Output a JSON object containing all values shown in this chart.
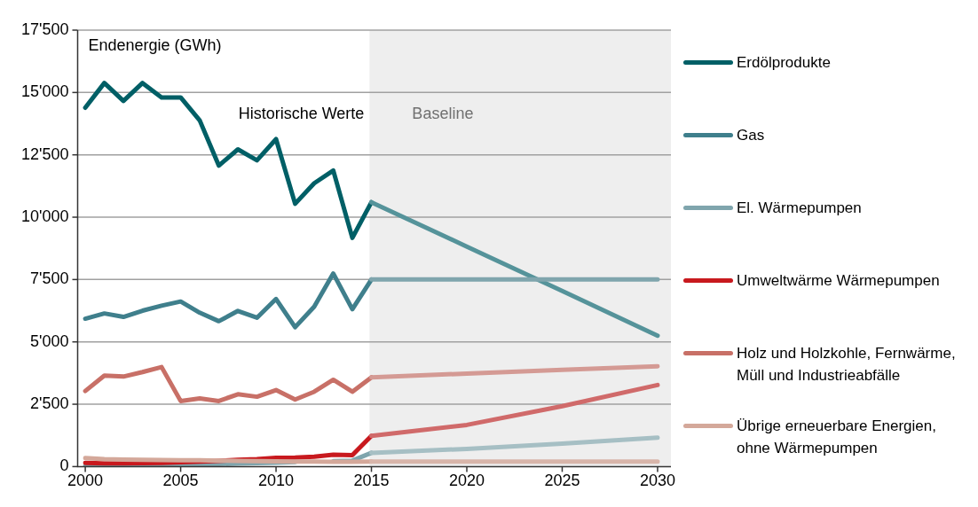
{
  "chart_data": {
    "type": "line",
    "ylabel": "Endenergie (GWh)",
    "xlim": [
      1999.6,
      2030.7
    ],
    "xticks": [
      2000,
      2005,
      2010,
      2015,
      2020,
      2025,
      2030
    ],
    "ylim": [
      0,
      17500
    ],
    "yticks": [
      {
        "value": 0,
        "label": "0"
      },
      {
        "value": 2500,
        "label": "2'500"
      },
      {
        "value": 5000,
        "label": "5'000"
      },
      {
        "value": 7500,
        "label": "7'500"
      },
      {
        "value": 10000,
        "label": "10'000"
      },
      {
        "value": 12500,
        "label": "12'500"
      },
      {
        "value": 15000,
        "label": "15'000"
      },
      {
        "value": 17500,
        "label": "17'500"
      }
    ],
    "grid": "y",
    "legend": "right",
    "marker": "none",
    "line_style": "solid",
    "annotations": [
      "Historische Werte"
    ],
    "bands": [
      {
        "axis": "x",
        "from": 2014.9,
        "to": 2030.7,
        "label": "Baseline",
        "color": "#eeeeee"
      }
    ],
    "series": [
      {
        "name": "Erdölprodukte",
        "color": "#005f66",
        "x": [
          2000,
          2001,
          2002,
          2003,
          2004,
          2005,
          2006,
          2007,
          2008,
          2009,
          2010,
          2011,
          2012,
          2013,
          2014,
          2015
        ],
        "values": [
          14390,
          15380,
          14660,
          15380,
          14800,
          14800,
          13880,
          12070,
          12720,
          12280,
          13130,
          10540,
          11360,
          11870,
          9170,
          10600
        ]
      },
      {
        "name": "Gas",
        "color": "#3f7f8c",
        "x": [
          2000,
          2001,
          2002,
          2003,
          2004,
          2005,
          2006,
          2007,
          2008,
          2009,
          2010,
          2011,
          2012,
          2013,
          2014,
          2015
        ],
        "values": [
          5930,
          6140,
          6000,
          6250,
          6450,
          6620,
          6170,
          5830,
          6240,
          5970,
          6720,
          5590,
          6410,
          7740,
          6310,
          7500
        ]
      },
      {
        "name": "El. Wärmepumpen",
        "color": "#7fa5ad",
        "x": [
          2000,
          2001,
          2002,
          2003,
          2004,
          2005,
          2006,
          2007,
          2008,
          2009,
          2010,
          2011,
          2012,
          2013,
          2014,
          2015
        ],
        "values": [
          30,
          40,
          50,
          60,
          70,
          80,
          90,
          100,
          120,
          140,
          160,
          180,
          null,
          220,
          240,
          550
        ]
      },
      {
        "name": "Umweltwärme Wärmepumpen",
        "color": "#c8191e",
        "x": [
          2000,
          2001,
          2002,
          2003,
          2004,
          2005,
          2006,
          2007,
          2008,
          2009,
          2010,
          2011,
          2012,
          2013,
          2014,
          2015
        ],
        "values": [
          150,
          130,
          130,
          140,
          150,
          170,
          200,
          230,
          270,
          300,
          350,
          360,
          400,
          480,
          460,
          1230
        ]
      },
      {
        "name": "Holz und Holzkohle, Fernwärme, Müll und Industrieabfälle",
        "color": "#c87067",
        "x": [
          2000,
          2001,
          2002,
          2003,
          2004,
          2005,
          2006,
          2007,
          2008,
          2009,
          2010,
          2011,
          2012,
          2013,
          2014,
          2015
        ],
        "values": [
          3030,
          3650,
          3610,
          3790,
          3990,
          2630,
          2730,
          2630,
          2900,
          2800,
          3070,
          2690,
          3000,
          3480,
          3000,
          3580
        ]
      },
      {
        "name": "Übrige erneuerbare Energien, ohne Wärmepumpen",
        "color": "#d4a89a",
        "x": [
          2000,
          2001,
          2002,
          2003,
          2004,
          2005,
          2006,
          2007,
          2008,
          2009,
          2010,
          2011,
          2012,
          2013,
          2014,
          2015
        ],
        "values": [
          340,
          300,
          280,
          270,
          260,
          250,
          250,
          240,
          230,
          220,
          210,
          200,
          200,
          190,
          190,
          200
        ]
      },
      {
        "color": "#55939a",
        "x": [
          2015,
          2020,
          2025,
          2030
        ],
        "values": [
          10600,
          8820,
          7040,
          5250
        ]
      },
      {
        "color": "#7fa5ad",
        "x": [
          2015,
          2020,
          2025,
          2030
        ],
        "values": [
          7500,
          7500,
          7500,
          7500
        ]
      },
      {
        "color": "#a6bfc4",
        "x": [
          2015,
          2020,
          2025,
          2030
        ],
        "values": [
          550,
          710,
          920,
          1160
        ]
      },
      {
        "color": "#d06a6a",
        "x": [
          2015,
          2020,
          2025,
          2030
        ],
        "values": [
          1230,
          1670,
          2420,
          3270
        ]
      },
      {
        "color": "#d49a94",
        "x": [
          2015,
          2020,
          2025,
          2030
        ],
        "values": [
          3580,
          3730,
          3880,
          4020
        ]
      },
      {
        "color": "#d8b5aa",
        "x": [
          2015,
          2020,
          2025,
          2030
        ],
        "values": [
          200,
          200,
          200,
          200
        ]
      }
    ]
  }
}
